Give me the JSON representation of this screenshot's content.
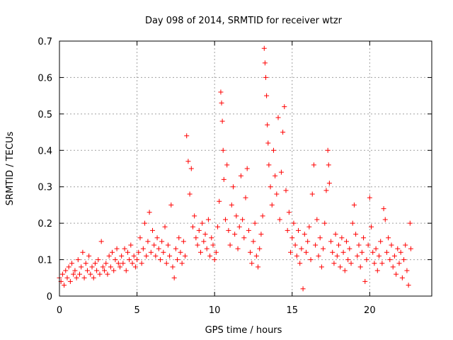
{
  "chart_data": {
    "type": "scatter",
    "title": "Day 098 of 2014, SRMTID for receiver wtzr",
    "xlabel": "GPS time / hours",
    "ylabel": "SRMTID / TECUs",
    "xlim": [
      0,
      24
    ],
    "ylim": [
      0,
      0.7
    ],
    "x_ticks": [
      0,
      5,
      10,
      15,
      20
    ],
    "x_tick_labels": [
      "0",
      "5",
      "10",
      "15",
      "20"
    ],
    "y_ticks": [
      0,
      0.1,
      0.2,
      0.3,
      0.4,
      0.5,
      0.6,
      0.7
    ],
    "y_tick_labels": [
      "0",
      "0.1",
      "0.2",
      "0.3",
      "0.4",
      "0.5",
      "0.6",
      "0.7"
    ],
    "grid": true,
    "marker": "+",
    "colors": {
      "series": "#ff0000",
      "axis": "#000000",
      "grid": "#a0a0a0"
    },
    "series": [
      {
        "name": "SRMTID",
        "points": [
          [
            0.0,
            0.05
          ],
          [
            0.1,
            0.04
          ],
          [
            0.2,
            0.06
          ],
          [
            0.3,
            0.03
          ],
          [
            0.4,
            0.07
          ],
          [
            0.5,
            0.05
          ],
          [
            0.6,
            0.08
          ],
          [
            0.7,
            0.04
          ],
          [
            0.8,
            0.09
          ],
          [
            0.9,
            0.06
          ],
          [
            1.0,
            0.07
          ],
          [
            1.1,
            0.05
          ],
          [
            1.2,
            0.1
          ],
          [
            1.3,
            0.06
          ],
          [
            1.4,
            0.08
          ],
          [
            1.5,
            0.12
          ],
          [
            1.6,
            0.05
          ],
          [
            1.7,
            0.09
          ],
          [
            1.8,
            0.07
          ],
          [
            1.9,
            0.11
          ],
          [
            2.0,
            0.06
          ],
          [
            2.1,
            0.08
          ],
          [
            2.2,
            0.05
          ],
          [
            2.3,
            0.09
          ],
          [
            2.4,
            0.07
          ],
          [
            2.5,
            0.1
          ],
          [
            2.6,
            0.06
          ],
          [
            2.7,
            0.15
          ],
          [
            2.8,
            0.08
          ],
          [
            2.9,
            0.07
          ],
          [
            3.0,
            0.09
          ],
          [
            3.1,
            0.06
          ],
          [
            3.2,
            0.11
          ],
          [
            3.3,
            0.08
          ],
          [
            3.4,
            0.12
          ],
          [
            3.5,
            0.07
          ],
          [
            3.6,
            0.1
          ],
          [
            3.7,
            0.13
          ],
          [
            3.8,
            0.09
          ],
          [
            3.9,
            0.08
          ],
          [
            4.0,
            0.11
          ],
          [
            4.1,
            0.09
          ],
          [
            4.2,
            0.13
          ],
          [
            4.3,
            0.07
          ],
          [
            4.4,
            0.12
          ],
          [
            4.5,
            0.1
          ],
          [
            4.6,
            0.14
          ],
          [
            4.7,
            0.09
          ],
          [
            4.8,
            0.11
          ],
          [
            4.9,
            0.08
          ],
          [
            5.0,
            0.1
          ],
          [
            5.1,
            0.12
          ],
          [
            5.2,
            0.16
          ],
          [
            5.3,
            0.09
          ],
          [
            5.4,
            0.13
          ],
          [
            5.5,
            0.2
          ],
          [
            5.6,
            0.11
          ],
          [
            5.7,
            0.15
          ],
          [
            5.8,
            0.23
          ],
          [
            5.9,
            0.12
          ],
          [
            6.0,
            0.18
          ],
          [
            6.1,
            0.14
          ],
          [
            6.2,
            0.11
          ],
          [
            6.3,
            0.16
          ],
          [
            6.4,
            0.13
          ],
          [
            6.5,
            0.1
          ],
          [
            6.6,
            0.15
          ],
          [
            6.7,
            0.12
          ],
          [
            6.8,
            0.19
          ],
          [
            6.9,
            0.09
          ],
          [
            7.0,
            0.14
          ],
          [
            7.1,
            0.11
          ],
          [
            7.2,
            0.25
          ],
          [
            7.3,
            0.08
          ],
          [
            7.4,
            0.05
          ],
          [
            7.5,
            0.13
          ],
          [
            7.6,
            0.1
          ],
          [
            7.7,
            0.16
          ],
          [
            7.8,
            0.12
          ],
          [
            7.9,
            0.09
          ],
          [
            8.0,
            0.15
          ],
          [
            8.1,
            0.11
          ],
          [
            8.2,
            0.44
          ],
          [
            8.3,
            0.37
          ],
          [
            8.4,
            0.28
          ],
          [
            8.5,
            0.35
          ],
          [
            8.6,
            0.19
          ],
          [
            8.7,
            0.22
          ],
          [
            8.8,
            0.16
          ],
          [
            8.9,
            0.14
          ],
          [
            9.0,
            0.18
          ],
          [
            9.1,
            0.12
          ],
          [
            9.2,
            0.2
          ],
          [
            9.3,
            0.15
          ],
          [
            9.4,
            0.17
          ],
          [
            9.5,
            0.13
          ],
          [
            9.6,
            0.21
          ],
          [
            9.7,
            0.11
          ],
          [
            9.8,
            0.16
          ],
          [
            9.9,
            0.14
          ],
          [
            10.0,
            0.1
          ],
          [
            10.1,
            0.12
          ],
          [
            10.2,
            0.19
          ],
          [
            10.3,
            0.26
          ],
          [
            10.4,
            0.56
          ],
          [
            10.45,
            0.53
          ],
          [
            10.5,
            0.48
          ],
          [
            10.55,
            0.4
          ],
          [
            10.6,
            0.32
          ],
          [
            10.7,
            0.21
          ],
          [
            10.8,
            0.36
          ],
          [
            10.9,
            0.18
          ],
          [
            11.0,
            0.14
          ],
          [
            11.1,
            0.25
          ],
          [
            11.2,
            0.3
          ],
          [
            11.3,
            0.17
          ],
          [
            11.4,
            0.22
          ],
          [
            11.5,
            0.13
          ],
          [
            11.6,
            0.19
          ],
          [
            11.7,
            0.33
          ],
          [
            11.8,
            0.21
          ],
          [
            11.9,
            0.16
          ],
          [
            12.0,
            0.27
          ],
          [
            12.1,
            0.35
          ],
          [
            12.2,
            0.18
          ],
          [
            12.3,
            0.12
          ],
          [
            12.4,
            0.09
          ],
          [
            12.5,
            0.15
          ],
          [
            12.6,
            0.2
          ],
          [
            12.7,
            0.11
          ],
          [
            12.8,
            0.08
          ],
          [
            12.9,
            0.13
          ],
          [
            13.0,
            0.17
          ],
          [
            13.1,
            0.22
          ],
          [
            13.2,
            0.68
          ],
          [
            13.25,
            0.64
          ],
          [
            13.3,
            0.6
          ],
          [
            13.35,
            0.55
          ],
          [
            13.4,
            0.47
          ],
          [
            13.45,
            0.42
          ],
          [
            13.5,
            0.36
          ],
          [
            13.6,
            0.3
          ],
          [
            13.7,
            0.25
          ],
          [
            13.8,
            0.4
          ],
          [
            13.9,
            0.33
          ],
          [
            14.0,
            0.28
          ],
          [
            14.1,
            0.49
          ],
          [
            14.2,
            0.21
          ],
          [
            14.3,
            0.34
          ],
          [
            14.4,
            0.45
          ],
          [
            14.5,
            0.52
          ],
          [
            14.6,
            0.29
          ],
          [
            14.7,
            0.18
          ],
          [
            14.8,
            0.23
          ],
          [
            14.9,
            0.12
          ],
          [
            15.0,
            0.16
          ],
          [
            15.1,
            0.2
          ],
          [
            15.2,
            0.14
          ],
          [
            15.3,
            0.11
          ],
          [
            15.4,
            0.18
          ],
          [
            15.5,
            0.09
          ],
          [
            15.6,
            0.13
          ],
          [
            15.7,
            0.02
          ],
          [
            15.8,
            0.17
          ],
          [
            15.9,
            0.12
          ],
          [
            16.0,
            0.15
          ],
          [
            16.1,
            0.19
          ],
          [
            16.2,
            0.1
          ],
          [
            16.3,
            0.28
          ],
          [
            16.4,
            0.36
          ],
          [
            16.5,
            0.14
          ],
          [
            16.6,
            0.21
          ],
          [
            16.7,
            0.11
          ],
          [
            16.8,
            0.16
          ],
          [
            16.9,
            0.08
          ],
          [
            17.0,
            0.13
          ],
          [
            17.1,
            0.2
          ],
          [
            17.2,
            0.29
          ],
          [
            17.3,
            0.4
          ],
          [
            17.35,
            0.36
          ],
          [
            17.4,
            0.31
          ],
          [
            17.5,
            0.15
          ],
          [
            17.6,
            0.12
          ],
          [
            17.7,
            0.09
          ],
          [
            17.8,
            0.17
          ],
          [
            17.9,
            0.11
          ],
          [
            18.0,
            0.14
          ],
          [
            18.1,
            0.08
          ],
          [
            18.2,
            0.16
          ],
          [
            18.3,
            0.12
          ],
          [
            18.4,
            0.07
          ],
          [
            18.5,
            0.15
          ],
          [
            18.6,
            0.1
          ],
          [
            18.7,
            0.13
          ],
          [
            18.8,
            0.09
          ],
          [
            18.9,
            0.2
          ],
          [
            19.0,
            0.25
          ],
          [
            19.1,
            0.17
          ],
          [
            19.2,
            0.11
          ],
          [
            19.3,
            0.14
          ],
          [
            19.4,
            0.08
          ],
          [
            19.5,
            0.12
          ],
          [
            19.6,
            0.16
          ],
          [
            19.7,
            0.04
          ],
          [
            19.8,
            0.1
          ],
          [
            19.9,
            0.14
          ],
          [
            20.0,
            0.27
          ],
          [
            20.1,
            0.19
          ],
          [
            20.2,
            0.12
          ],
          [
            20.3,
            0.09
          ],
          [
            20.4,
            0.13
          ],
          [
            20.5,
            0.07
          ],
          [
            20.6,
            0.11
          ],
          [
            20.7,
            0.15
          ],
          [
            20.8,
            0.09
          ],
          [
            20.9,
            0.24
          ],
          [
            21.0,
            0.21
          ],
          [
            21.1,
            0.12
          ],
          [
            21.2,
            0.16
          ],
          [
            21.3,
            0.1
          ],
          [
            21.4,
            0.14
          ],
          [
            21.5,
            0.08
          ],
          [
            21.6,
            0.11
          ],
          [
            21.7,
            0.06
          ],
          [
            21.8,
            0.13
          ],
          [
            21.9,
            0.09
          ],
          [
            22.0,
            0.12
          ],
          [
            22.1,
            0.05
          ],
          [
            22.2,
            0.1
          ],
          [
            22.3,
            0.14
          ],
          [
            22.4,
            0.07
          ],
          [
            22.5,
            0.03
          ],
          [
            22.6,
            0.2
          ],
          [
            22.65,
            0.13
          ]
        ]
      }
    ]
  }
}
